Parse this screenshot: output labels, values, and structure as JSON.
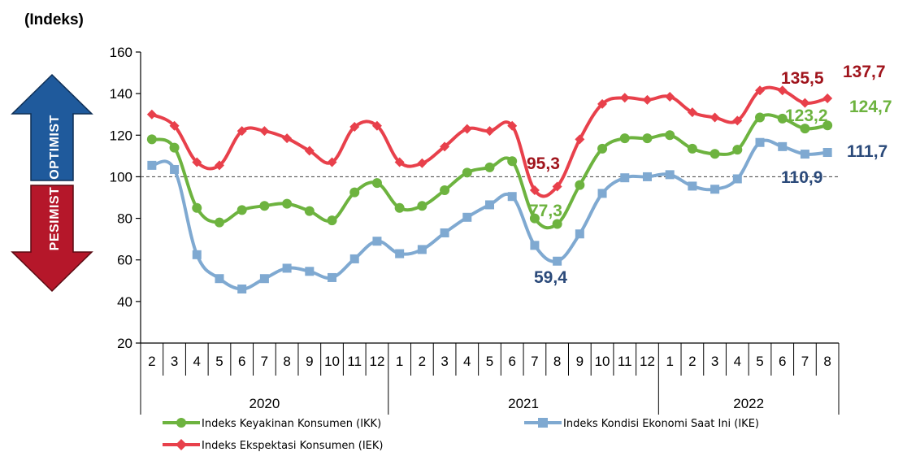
{
  "chart_data": {
    "type": "line",
    "ylabel": "(Indeks)",
    "ylim": [
      20,
      160
    ],
    "yticks": [
      20,
      40,
      60,
      80,
      100,
      120,
      140,
      160
    ],
    "reference_line": 100,
    "months": [
      "2",
      "3",
      "4",
      "5",
      "6",
      "7",
      "8",
      "9",
      "10",
      "11",
      "12",
      "1",
      "2",
      "3",
      "4",
      "5",
      "6",
      "7",
      "8",
      "9",
      "10",
      "11",
      "12",
      "1",
      "2",
      "3",
      "4",
      "5",
      "6",
      "7",
      "8"
    ],
    "years": [
      {
        "label": "2020",
        "start": 0,
        "end": 10
      },
      {
        "label": "2021",
        "start": 11,
        "end": 22
      },
      {
        "label": "2022",
        "start": 23,
        "end": 30
      }
    ],
    "series": [
      {
        "key": "iek",
        "name": "Indeks Ekspektasi Konsumen (IEK)",
        "color": "#e8404b",
        "marker": "diamond",
        "values": [
          130,
          124.5,
          107,
          105.5,
          122,
          122,
          118.5,
          112.5,
          107,
          124,
          124.5,
          107,
          106.5,
          114.5,
          123,
          122,
          124.5,
          93.5,
          95.3,
          118,
          135,
          138,
          137,
          138.5,
          131,
          128.5,
          127,
          141.5,
          141.5,
          135.5,
          137.7
        ]
      },
      {
        "key": "ikk",
        "name": "Indeks Keyakinan Konsumen (IKK)",
        "color": "#6db33f",
        "marker": "circle",
        "values": [
          118,
          114,
          85,
          78,
          84,
          86,
          87,
          83.5,
          79,
          92.5,
          97,
          85,
          86,
          93.5,
          102,
          104.5,
          107.5,
          80,
          77.3,
          96,
          113.5,
          118.5,
          118.5,
          120,
          113.5,
          111,
          113,
          128.5,
          128,
          123.2,
          124.7
        ]
      },
      {
        "key": "ike",
        "name": "Indeks Kondisi Ekonomi Saat Ini (IKE)",
        "color": "#7fa9d1",
        "marker": "square",
        "values": [
          105.5,
          103.5,
          62.5,
          51,
          46,
          51,
          56,
          54.5,
          51.5,
          60.5,
          69,
          63,
          65,
          73,
          80.5,
          86.5,
          90.5,
          67,
          59.4,
          72.5,
          92,
          99.5,
          100,
          101,
          95.5,
          94,
          99,
          116.5,
          114.5,
          110.9,
          111.7
        ]
      }
    ],
    "annotations": [
      {
        "text": "95,3",
        "series": "iek",
        "color": "#a0141c"
      },
      {
        "text": "77,3",
        "series": "ikk",
        "color": "#6db33f"
      },
      {
        "text": "59,4",
        "series": "ike",
        "color": "#2b4a7a"
      },
      {
        "text": "135,5",
        "series": "iek",
        "color": "#a0141c"
      },
      {
        "text": "137,7",
        "series": "iek",
        "color": "#a0141c"
      },
      {
        "text": "123,2",
        "series": "ikk",
        "color": "#6db33f"
      },
      {
        "text": "124,7",
        "series": "ikk",
        "color": "#6db33f"
      },
      {
        "text": "110,9",
        "series": "ike",
        "color": "#2b4a7a"
      },
      {
        "text": "111,7",
        "series": "ike",
        "color": "#2b4a7a"
      }
    ],
    "arrow_labels": {
      "up": "OPTIMIST",
      "up_color": "#1f5a9c",
      "down": "PESIMIST",
      "down_color": "#b5172a"
    }
  }
}
